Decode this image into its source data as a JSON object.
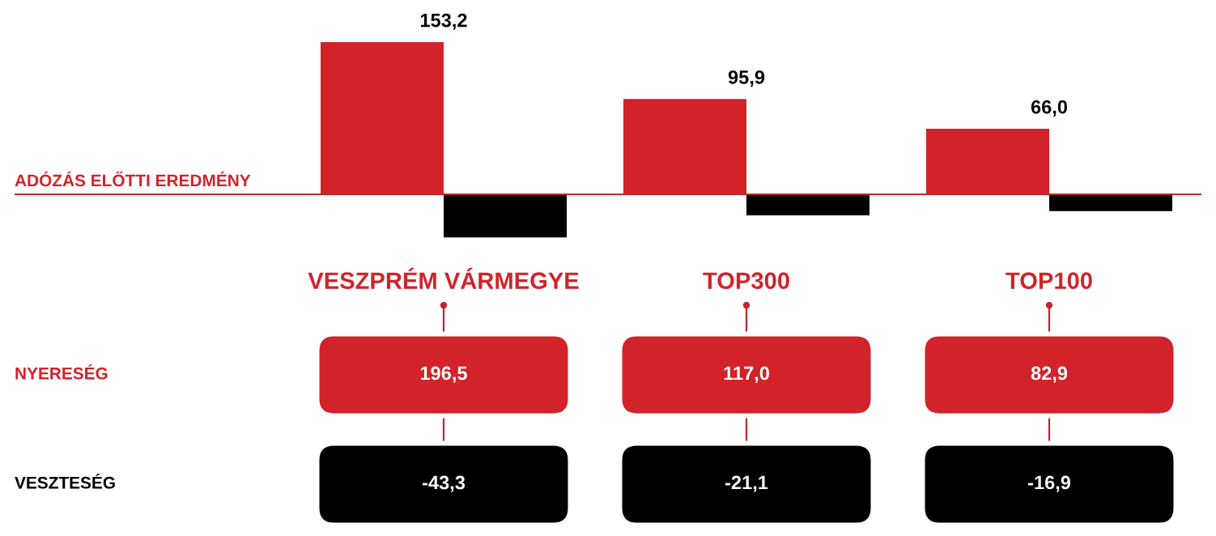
{
  "chart_data": [
    {
      "type": "bar",
      "categories": [
        "VESZPRÉM VÁRMEGYE",
        "TOP300",
        "TOP100"
      ],
      "series": [
        {
          "name": "ADÓZÁS ELŐTTI EREDMÉNY",
          "color": "#d2232a",
          "values": [
            153.2,
            95.9,
            66.0
          ],
          "value_labels": [
            "153,2",
            "95,9",
            "66,0"
          ]
        },
        {
          "color": "#000000",
          "values": [
            -43.3,
            -21.1,
            -16.9
          ]
        }
      ],
      "ref_lines": [
        {
          "axis": "y",
          "value": 0,
          "color": "#c1272d"
        }
      ]
    },
    {
      "type": "other",
      "categories": [
        null,
        null,
        null
      ],
      "annotations": [
        "NYERESÉG",
        "196,5",
        "117,0",
        "82,9",
        "VESZTESÉG",
        "-43,3",
        "-21,1",
        "-16,9"
      ]
    }
  ]
}
